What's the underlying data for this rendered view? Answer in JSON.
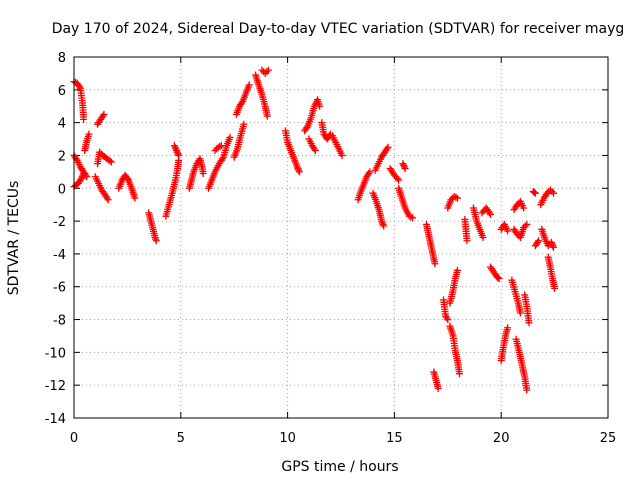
{
  "chart_data": {
    "type": "scatter",
    "title": "Day 170 of 2024, Sidereal Day-to-day VTEC variation (SDTVAR) for receiver mayg",
    "xlabel": "GPS time / hours",
    "ylabel": "SDTVAR / TECUs",
    "xlim": [
      0,
      25
    ],
    "ylim": [
      -14,
      8
    ],
    "xticks": [
      0,
      5,
      10,
      15,
      20,
      25
    ],
    "yticks": [
      -14,
      -12,
      -10,
      -8,
      -6,
      -4,
      -2,
      0,
      2,
      4,
      6,
      8
    ],
    "grid": true,
    "marker": "+",
    "color": "#ff0000",
    "series": [
      {
        "name": "SDTVAR",
        "segments": [
          [
            [
              0.0,
              6.5
            ],
            [
              0.15,
              6.4
            ],
            [
              0.3,
              6.1
            ],
            [
              0.4,
              5.2
            ],
            [
              0.45,
              4.2
            ]
          ],
          [
            [
              0.0,
              0.1
            ],
            [
              0.2,
              0.3
            ],
            [
              0.35,
              0.6
            ],
            [
              0.45,
              0.9
            ]
          ],
          [
            [
              0.0,
              2.0
            ],
            [
              0.15,
              1.7
            ],
            [
              0.3,
              1.3
            ],
            [
              0.45,
              1.0
            ],
            [
              0.6,
              0.7
            ]
          ],
          [
            [
              0.5,
              2.3
            ],
            [
              0.6,
              2.9
            ],
            [
              0.7,
              3.3
            ]
          ],
          [
            [
              1.0,
              0.7
            ],
            [
              1.15,
              0.3
            ],
            [
              1.3,
              -0.1
            ],
            [
              1.45,
              -0.4
            ],
            [
              1.6,
              -0.7
            ]
          ],
          [
            [
              1.1,
              3.9
            ],
            [
              1.25,
              4.2
            ],
            [
              1.4,
              4.5
            ]
          ],
          [
            [
              1.1,
              1.5
            ],
            [
              1.2,
              2.2
            ],
            [
              1.35,
              2.0
            ],
            [
              1.55,
              1.8
            ],
            [
              1.75,
              1.6
            ]
          ],
          [
            [
              2.1,
              0.0
            ],
            [
              2.25,
              0.5
            ],
            [
              2.4,
              0.8
            ],
            [
              2.55,
              0.5
            ],
            [
              2.7,
              0.0
            ],
            [
              2.85,
              -0.6
            ]
          ],
          [
            [
              3.5,
              -1.5
            ],
            [
              3.6,
              -2.0
            ],
            [
              3.7,
              -2.5
            ],
            [
              3.8,
              -3.0
            ],
            [
              3.85,
              -3.2
            ]
          ],
          [
            [
              4.3,
              -1.7
            ],
            [
              4.45,
              -1.0
            ],
            [
              4.6,
              -0.3
            ],
            [
              4.75,
              0.5
            ],
            [
              4.85,
              1.2
            ],
            [
              4.9,
              1.7
            ]
          ],
          [
            [
              4.7,
              2.6
            ],
            [
              4.8,
              2.3
            ],
            [
              4.9,
              2.0
            ]
          ],
          [
            [
              5.4,
              0.0
            ],
            [
              5.5,
              0.5
            ],
            [
              5.6,
              1.0
            ],
            [
              5.75,
              1.5
            ],
            [
              5.9,
              1.8
            ],
            [
              6.0,
              1.3
            ],
            [
              6.05,
              0.9
            ]
          ],
          [
            [
              6.3,
              0.0
            ],
            [
              6.45,
              0.5
            ],
            [
              6.6,
              1.0
            ],
            [
              6.8,
              1.5
            ],
            [
              7.0,
              1.9
            ],
            [
              7.15,
              2.6
            ],
            [
              7.3,
              3.1
            ]
          ],
          [
            [
              6.6,
              2.3
            ],
            [
              6.75,
              2.5
            ],
            [
              6.9,
              2.6
            ]
          ],
          [
            [
              7.5,
              1.9
            ],
            [
              7.65,
              2.4
            ],
            [
              7.8,
              3.2
            ],
            [
              7.95,
              3.9
            ]
          ],
          [
            [
              7.6,
              4.5
            ],
            [
              7.75,
              5.0
            ],
            [
              7.9,
              5.3
            ],
            [
              8.05,
              5.8
            ],
            [
              8.2,
              6.3
            ]
          ],
          [
            [
              8.5,
              6.9
            ],
            [
              8.65,
              6.3
            ],
            [
              8.8,
              5.7
            ],
            [
              8.95,
              5.0
            ],
            [
              9.05,
              4.4
            ]
          ],
          [
            [
              8.8,
              7.2
            ],
            [
              8.95,
              7.0
            ],
            [
              9.1,
              7.2
            ]
          ],
          [
            [
              9.9,
              3.5
            ],
            [
              10.0,
              2.8
            ],
            [
              10.15,
              2.3
            ],
            [
              10.3,
              1.8
            ],
            [
              10.45,
              1.3
            ],
            [
              10.55,
              1.0
            ]
          ],
          [
            [
              10.8,
              3.5
            ],
            [
              10.95,
              3.8
            ],
            [
              11.1,
              4.3
            ],
            [
              11.25,
              5.0
            ],
            [
              11.4,
              5.4
            ],
            [
              11.5,
              5.0
            ]
          ],
          [
            [
              11.0,
              3.0
            ],
            [
              11.15,
              2.6
            ],
            [
              11.3,
              2.3
            ]
          ],
          [
            [
              11.6,
              4.0
            ],
            [
              11.7,
              3.3
            ],
            [
              11.85,
              3.0
            ],
            [
              12.0,
              3.3
            ]
          ],
          [
            [
              12.1,
              3.2
            ],
            [
              12.25,
              2.8
            ],
            [
              12.4,
              2.4
            ],
            [
              12.55,
              2.0
            ]
          ],
          [
            [
              13.3,
              -0.7
            ],
            [
              13.4,
              -0.3
            ],
            [
              13.55,
              0.2
            ],
            [
              13.7,
              0.7
            ],
            [
              13.85,
              1.0
            ]
          ],
          [
            [
              14.0,
              -0.3
            ],
            [
              14.15,
              -0.8
            ],
            [
              14.3,
              -1.4
            ],
            [
              14.4,
              -2.0
            ],
            [
              14.5,
              -2.3
            ]
          ],
          [
            [
              14.1,
              1.1
            ],
            [
              14.25,
              1.5
            ],
            [
              14.4,
              1.9
            ],
            [
              14.55,
              2.2
            ],
            [
              14.7,
              2.5
            ]
          ],
          [
            [
              14.8,
              1.2
            ],
            [
              15.0,
              0.8
            ],
            [
              15.2,
              0.5
            ]
          ],
          [
            [
              15.2,
              0.0
            ],
            [
              15.35,
              -0.6
            ],
            [
              15.5,
              -1.2
            ],
            [
              15.7,
              -1.7
            ],
            [
              15.85,
              -1.8
            ]
          ],
          [
            [
              15.4,
              1.5
            ],
            [
              15.5,
              1.2
            ]
          ],
          [
            [
              16.5,
              -2.2
            ],
            [
              16.6,
              -2.8
            ],
            [
              16.7,
              -3.4
            ],
            [
              16.8,
              -4.0
            ],
            [
              16.9,
              -4.6
            ]
          ],
          [
            [
              16.85,
              -11.2
            ],
            [
              16.95,
              -11.7
            ],
            [
              17.05,
              -12.2
            ]
          ],
          [
            [
              17.3,
              -6.8
            ],
            [
              17.4,
              -7.8
            ],
            [
              17.5,
              -8.0
            ]
          ],
          [
            [
              17.6,
              -8.4
            ],
            [
              17.75,
              -9.0
            ],
            [
              17.85,
              -9.9
            ],
            [
              17.95,
              -10.5
            ],
            [
              18.05,
              -11.3
            ]
          ],
          [
            [
              17.6,
              -7.0
            ],
            [
              17.75,
              -6.2
            ],
            [
              17.85,
              -5.5
            ],
            [
              17.95,
              -5.0
            ]
          ],
          [
            [
              17.5,
              -1.2
            ],
            [
              17.65,
              -0.7
            ],
            [
              17.8,
              -0.5
            ],
            [
              17.95,
              -0.6
            ]
          ],
          [
            [
              18.3,
              -1.9
            ],
            [
              18.4,
              -3.2
            ]
          ],
          [
            [
              18.7,
              -1.2
            ],
            [
              18.85,
              -2.0
            ],
            [
              19.0,
              -2.5
            ],
            [
              19.15,
              -3.0
            ]
          ],
          [
            [
              19.1,
              -1.5
            ],
            [
              19.3,
              -1.2
            ],
            [
              19.5,
              -1.6
            ]
          ],
          [
            [
              19.5,
              -4.8
            ],
            [
              19.65,
              -5.1
            ],
            [
              19.8,
              -5.4
            ],
            [
              19.9,
              -5.5
            ]
          ],
          [
            [
              20.0,
              -2.5
            ],
            [
              20.15,
              -2.2
            ],
            [
              20.3,
              -2.6
            ]
          ],
          [
            [
              20.0,
              -10.5
            ],
            [
              20.1,
              -9.7
            ],
            [
              20.2,
              -9.0
            ],
            [
              20.3,
              -8.5
            ]
          ],
          [
            [
              20.6,
              -1.3
            ],
            [
              20.75,
              -1.0
            ],
            [
              20.9,
              -0.8
            ],
            [
              21.05,
              -1.2
            ]
          ],
          [
            [
              20.5,
              -5.6
            ],
            [
              20.65,
              -6.3
            ],
            [
              20.8,
              -7.0
            ],
            [
              20.9,
              -7.6
            ]
          ],
          [
            [
              20.7,
              -9.2
            ],
            [
              20.85,
              -10.0
            ],
            [
              21.0,
              -10.9
            ],
            [
              21.1,
              -11.5
            ],
            [
              21.2,
              -12.3
            ]
          ],
          [
            [
              20.6,
              -2.5
            ],
            [
              20.75,
              -2.8
            ],
            [
              20.9,
              -3.0
            ],
            [
              21.05,
              -2.4
            ],
            [
              21.2,
              -2.2
            ]
          ],
          [
            [
              21.1,
              -6.5
            ],
            [
              21.2,
              -7.2
            ],
            [
              21.3,
              -8.2
            ]
          ],
          [
            [
              21.5,
              -0.2
            ],
            [
              21.6,
              -0.3
            ]
          ],
          [
            [
              21.6,
              -3.5
            ],
            [
              21.75,
              -3.2
            ]
          ],
          [
            [
              21.85,
              -1.0
            ],
            [
              22.0,
              -0.6
            ],
            [
              22.15,
              -0.3
            ],
            [
              22.3,
              -0.1
            ],
            [
              22.45,
              -0.3
            ]
          ],
          [
            [
              21.9,
              -2.5
            ],
            [
              22.05,
              -3.1
            ],
            [
              22.2,
              -3.5
            ],
            [
              22.35,
              -3.3
            ],
            [
              22.45,
              -3.6
            ]
          ],
          [
            [
              22.2,
              -4.2
            ],
            [
              22.3,
              -4.8
            ],
            [
              22.4,
              -5.5
            ],
            [
              22.5,
              -6.1
            ]
          ]
        ]
      }
    ]
  }
}
